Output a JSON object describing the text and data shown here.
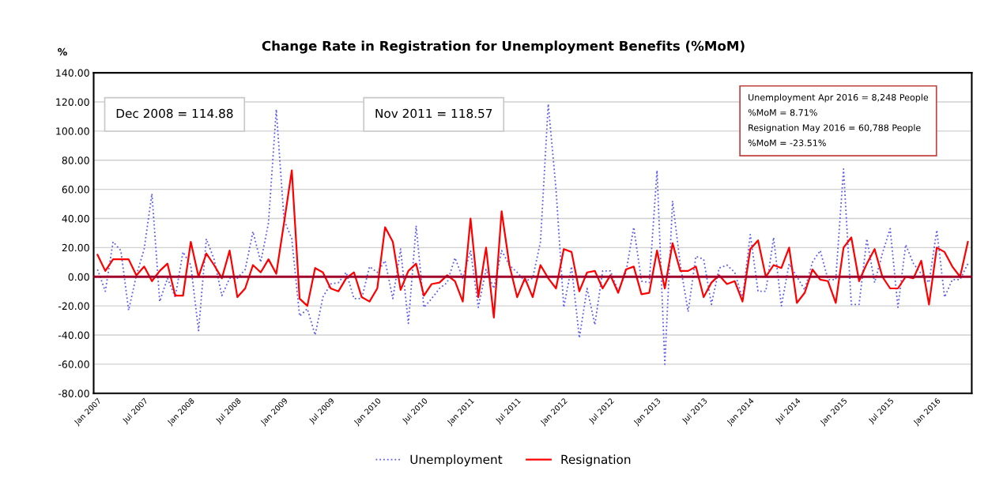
{
  "chart_data": {
    "type": "line",
    "title": "Change Rate in Registration for Unemployment Benefits (%MoM)",
    "ylabel": "%",
    "categories": [
      "Jan 2007",
      null,
      null,
      null,
      null,
      null,
      "Jul 2007",
      null,
      null,
      null,
      null,
      null,
      "Jan 2008",
      null,
      null,
      null,
      null,
      null,
      "Jul 2008",
      null,
      null,
      null,
      null,
      null,
      "Jan 2009",
      null,
      null,
      null,
      null,
      null,
      "Jul 2009",
      null,
      null,
      null,
      null,
      null,
      "Jan 2010",
      null,
      null,
      null,
      null,
      null,
      "Jul 2010",
      null,
      null,
      null,
      null,
      null,
      "Jan 2011",
      null,
      null,
      null,
      null,
      null,
      "Jul 2011",
      null,
      null,
      null,
      null,
      null,
      "Jan 2012",
      null,
      null,
      null,
      null,
      null,
      "Jul 2012",
      null,
      null,
      null,
      null,
      null,
      "Jan 2013",
      null,
      null,
      null,
      null,
      null,
      "Jul 2013",
      null,
      null,
      null,
      null,
      null,
      "Jan 2014",
      null,
      null,
      null,
      null,
      null,
      "Jul 2014",
      null,
      null,
      null,
      null,
      null,
      "Jan 2015",
      null,
      null,
      null,
      null,
      null,
      "Jul 2015",
      null,
      null,
      null,
      null,
      null,
      "Jan 2016",
      null,
      null,
      null,
      null
    ],
    "series": [
      {
        "name": "Unemployment",
        "color": "#5b5bf0",
        "line_style": "dotted",
        "values": [
          5,
          -10,
          24,
          18,
          -23,
          1,
          19,
          57,
          -17,
          -1,
          -14,
          17,
          8,
          -37,
          26,
          12,
          -13,
          -1,
          -1,
          5,
          31,
          10,
          37,
          114.88,
          39,
          26,
          -27,
          -22,
          -40,
          -14,
          -5,
          -4,
          3,
          -15,
          -15,
          7,
          3,
          11,
          -15,
          19,
          -32,
          35,
          -21,
          -15,
          -8,
          -4,
          13,
          -1,
          18,
          -21,
          5,
          -8,
          18,
          8,
          3,
          -3,
          -1,
          24,
          118.57,
          60,
          -21,
          7,
          -42,
          -8,
          -33,
          4,
          4,
          -10,
          3,
          34,
          -3,
          -4,
          73,
          -60,
          52,
          8,
          -24,
          14,
          12,
          -19,
          6,
          8,
          3,
          -15,
          29,
          -10,
          -10,
          27,
          -20,
          9,
          0,
          -9,
          10,
          18,
          -2,
          -2,
          74,
          -19,
          -19,
          26,
          -4,
          16,
          33,
          -21,
          22,
          9,
          2,
          -4,
          32,
          -14,
          -2,
          -2,
          9
        ]
      },
      {
        "name": "Resignation",
        "color": "#ff0000",
        "line_style": "solid",
        "values": [
          15,
          4,
          12,
          12,
          12,
          1,
          7,
          -3,
          4,
          9,
          -13,
          -13,
          24,
          0,
          16,
          8,
          -1,
          18,
          -14,
          -8,
          8,
          3,
          12,
          2,
          37,
          73,
          -15,
          -20,
          6,
          3,
          -8,
          -10,
          -1,
          3,
          -14,
          -17,
          -8,
          34,
          24,
          -9,
          4,
          9,
          -13,
          -5,
          -4,
          1,
          -3,
          -17,
          40,
          -14,
          20,
          -28,
          45,
          8,
          -14,
          -1,
          -14,
          8,
          -1,
          -8,
          19,
          17,
          -10,
          3,
          4,
          -8,
          1,
          -11,
          5,
          7,
          -12,
          -11,
          18,
          -8,
          23,
          4,
          4,
          7,
          -14,
          -4,
          1,
          -5,
          -3,
          -17,
          19,
          25,
          0,
          8,
          6,
          20,
          -18,
          -11,
          5,
          -2,
          -3,
          -18,
          20,
          27,
          -3,
          9,
          19,
          0,
          -8,
          -8,
          0,
          -1,
          11,
          -19,
          20,
          17,
          7,
          0,
          24
        ]
      }
    ],
    "ylim": [
      -80,
      140
    ],
    "yticks": [
      {
        "value": -80,
        "label": "-80.00"
      },
      {
        "value": -60,
        "label": "-60.00"
      },
      {
        "value": -40,
        "label": "-40.00"
      },
      {
        "value": -20,
        "label": "-20.00"
      },
      {
        "value": 0,
        "label": "0.00"
      },
      {
        "value": 20,
        "label": "20.00"
      },
      {
        "value": 40,
        "label": "40.00"
      },
      {
        "value": 60,
        "label": "60.00"
      },
      {
        "value": 80,
        "label": "80.00"
      },
      {
        "value": 100,
        "label": "100.00"
      },
      {
        "value": 120,
        "label": "120.00"
      },
      {
        "value": 140,
        "label": "140.00"
      }
    ],
    "ref_lines": [
      {
        "axis": "y",
        "value": 0,
        "color": "#a0002a"
      }
    ],
    "annotations": [
      "Dec 2008 = 114.88",
      "Nov 2011 = 118.57",
      "Unemployment Apr 2016 = 8,248 People\n%MoM = 8.71%\nResignation May 2016 = 60,788 People\n%MoM = -23.51%"
    ],
    "grid": "y",
    "legend": "bottom"
  }
}
